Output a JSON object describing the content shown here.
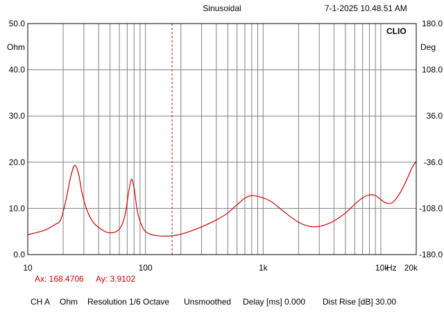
{
  "header": {
    "title": "Sinusoidal",
    "timestamp": "7-1-2025 10.48.51 AM"
  },
  "cursor_readout": {
    "ax": "Ax: 168.4706",
    "ay": "Ay: 3.9102"
  },
  "footer": {
    "channel": "CH A",
    "unit": "Ohm",
    "resolution": "Resolution 1/6 Octave",
    "smoothing": "Unsmoothed",
    "delay": "Delay [ms] 0.000",
    "dist_rise": "Dist Rise [dB] 30.00"
  },
  "colors": {
    "curve": "#cc0000",
    "cursor": "#cc0000",
    "grid": "#808080",
    "frame": "#000000",
    "cursor_text": "#cc0000"
  },
  "chart_data": {
    "type": "line",
    "brand": "CLIO",
    "x_scale": "log",
    "xlim": [
      10,
      20000
    ],
    "ylim": [
      0,
      50
    ],
    "y2lim": [
      -180,
      180
    ],
    "y_unit": "Ohm",
    "y2_unit": "Deg",
    "x_ticks": [
      {
        "value": 10,
        "label": "10"
      },
      {
        "value": 100,
        "label": "100"
      },
      {
        "value": 1000,
        "label": "1k"
      },
      {
        "value": 10000,
        "label": "10k"
      },
      {
        "value": 20000,
        "label": "20k"
      }
    ],
    "x_unit_label": "Hz",
    "y_ticks": [
      {
        "value": 0,
        "label": "0.0"
      },
      {
        "value": 10,
        "label": "10.0"
      },
      {
        "value": 20,
        "label": "20.0"
      },
      {
        "value": 30,
        "label": "30.0"
      },
      {
        "value": 40,
        "label": "40.0"
      },
      {
        "value": 50,
        "label": "50.0"
      }
    ],
    "y2_ticks": [
      {
        "value": -180,
        "label": "-180.0"
      },
      {
        "value": -108,
        "label": "-108.0"
      },
      {
        "value": -36,
        "label": "-36.0"
      },
      {
        "value": 36,
        "label": "36.0"
      },
      {
        "value": 108,
        "label": "108.0"
      },
      {
        "value": 180,
        "label": "180.0"
      }
    ],
    "grid": true,
    "cursor_x": 168.4706,
    "series": [
      {
        "x": [
          10,
          14,
          17,
          19,
          21,
          23,
          25,
          27,
          29,
          32,
          36,
          42,
          50,
          60,
          67,
          72,
          76,
          80,
          83,
          86,
          90,
          95,
          100,
          110,
          125,
          150,
          170,
          200,
          250,
          300,
          400,
          500,
          600,
          700,
          800,
          900,
          1000,
          1200,
          1500,
          2000,
          2500,
          3000,
          3500,
          4000,
          5000,
          6000,
          7000,
          8000,
          9000,
          10000,
          11000,
          12000,
          13000,
          15000,
          17000,
          18500,
          20000
        ],
        "y": [
          4.3,
          5.3,
          6.5,
          7.5,
          11.5,
          16.5,
          19.3,
          17.5,
          13.2,
          9.5,
          7.0,
          5.5,
          4.7,
          5.5,
          8.5,
          13.5,
          16.3,
          14.5,
          11.5,
          9.0,
          7.2,
          5.8,
          5.0,
          4.4,
          4.1,
          4.0,
          4.1,
          4.4,
          5.2,
          6.0,
          7.5,
          9.0,
          10.8,
          12.2,
          12.8,
          12.6,
          12.3,
          11.3,
          9.3,
          7.0,
          6.1,
          6.1,
          6.6,
          7.3,
          9.0,
          10.9,
          12.3,
          12.9,
          12.8,
          11.9,
          11.2,
          11.1,
          11.6,
          13.9,
          16.8,
          18.9,
          20.2
        ]
      }
    ]
  }
}
